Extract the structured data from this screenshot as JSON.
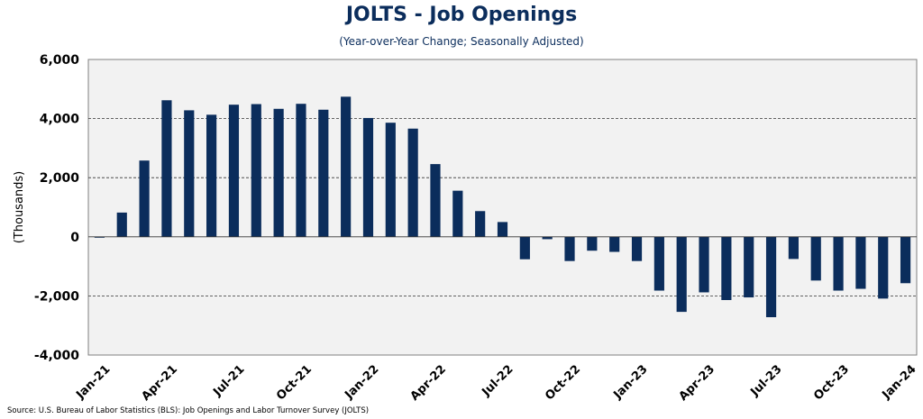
{
  "chart_data": {
    "type": "bar",
    "title": "JOLTS - Job Openings",
    "subtitle": "(Year-over-Year Change; Seasonally Adjusted)",
    "ylabel": "(Thousands)",
    "xlabel": "",
    "ylim": [
      -4000,
      6000
    ],
    "yticks": [
      -4000,
      -2000,
      0,
      2000,
      4000,
      6000
    ],
    "ytick_labels": [
      "-4,000",
      "-2,000",
      "0",
      "2,000",
      "4,000",
      "6,000"
    ],
    "grid": "horizontal dashed",
    "legend": "none",
    "bar_color": "#0b2d5c",
    "plot_background": "#f2f2f2",
    "categories": [
      "Jan-21",
      "Feb-21",
      "Mar-21",
      "Apr-21",
      "May-21",
      "Jun-21",
      "Jul-21",
      "Aug-21",
      "Sep-21",
      "Oct-21",
      "Nov-21",
      "Dec-21",
      "Jan-22",
      "Feb-22",
      "Mar-22",
      "Apr-22",
      "May-22",
      "Jun-22",
      "Jul-22",
      "Aug-22",
      "Sep-22",
      "Oct-22",
      "Nov-22",
      "Dec-22",
      "Jan-23",
      "Feb-23",
      "Mar-23",
      "Apr-23",
      "May-23",
      "Jun-23",
      "Jul-23",
      "Aug-23",
      "Sep-23",
      "Oct-23",
      "Nov-23",
      "Dec-23",
      "Jan-24"
    ],
    "values": [
      -20,
      820,
      2580,
      4620,
      4280,
      4130,
      4470,
      4490,
      4330,
      4500,
      4300,
      4740,
      4020,
      3860,
      3660,
      2460,
      1560,
      870,
      500,
      -760,
      -80,
      -820,
      -470,
      -510,
      -820,
      -1820,
      -2540,
      -1880,
      -2140,
      -2050,
      -2720,
      -750,
      -1480,
      -1820,
      -1760,
      -2090,
      -1570
    ],
    "xtick_labels": [
      "Jan-21",
      "Apr-21",
      "Jul-21",
      "Oct-21",
      "Jan-22",
      "Apr-22",
      "Jul-22",
      "Oct-22",
      "Jan-23",
      "Apr-23",
      "Jul-23",
      "Oct-23",
      "Jan-24"
    ],
    "source": "Source: U.S. Bureau of Labor Statistics (BLS): Job Openings and Labor Turnover Survey (JOLTS)"
  }
}
